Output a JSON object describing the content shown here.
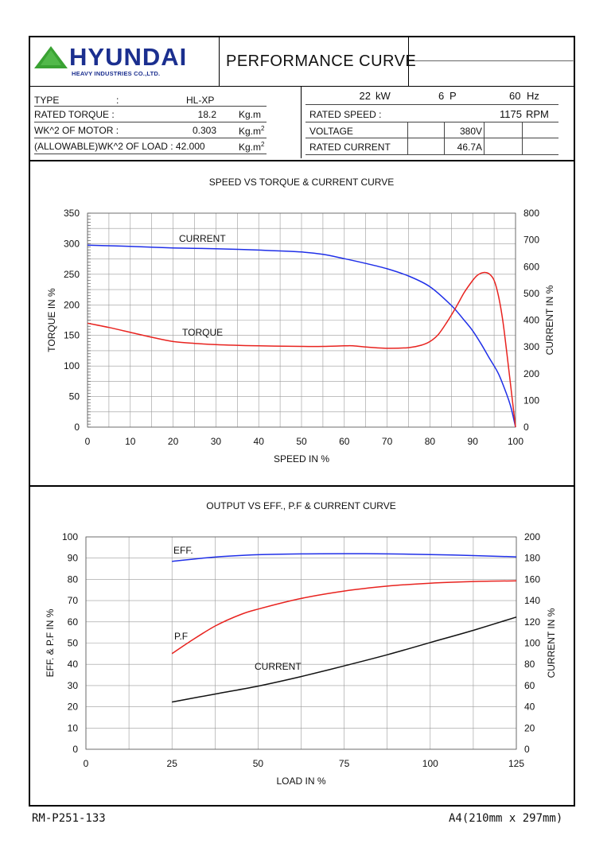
{
  "header": {
    "logo_main": "HYUNDAI",
    "logo_sub": "HEAVY INDUSTRIES CO.,LTD.",
    "title": "PERFORMANCE CURVE"
  },
  "specs_left": {
    "type_label": "TYPE",
    "type_colon": ":",
    "type_value": "HL-XP",
    "rated_torque_label": "RATED TORQUE :",
    "rated_torque_value": "18.2",
    "rated_torque_unit": "Kg.m",
    "wk_motor_label": "WK^2 OF MOTOR :",
    "wk_motor_value": "0.303",
    "wk_motor_unit": "Kg.m",
    "wk_load_label": "(ALLOWABLE)WK^2 OF LOAD : 42.000",
    "wk_load_unit": "Kg.m",
    "unit_sup": "2"
  },
  "specs_right": {
    "power_value": "22",
    "power_unit": "kW",
    "poles_value": "6",
    "poles_unit": "P",
    "freq_value": "60",
    "freq_unit": "Hz",
    "rated_speed_label": "RATED SPEED :",
    "rated_speed_value": "1175",
    "rated_speed_unit": "RPM",
    "voltage_label": "VOLTAGE",
    "voltage_value": "380V",
    "current_label": "RATED CURRENT",
    "current_value": "46.7A"
  },
  "footer": {
    "doc_no": "RM-P251-133",
    "paper": "A4(210mm x 297mm)"
  },
  "colors": {
    "current": "#1f2fe8",
    "torque": "#e8231f",
    "eff": "#1f2fe8",
    "pf": "#e8231f",
    "current2": "#111111",
    "grid": "#9a9a9a"
  },
  "chart_data": [
    {
      "type": "line",
      "title": "SPEED VS TORQUE & CURRENT CURVE",
      "xlabel": "SPEED IN %",
      "ylabel": "TORQUE IN %",
      "y2label": "CURRENT IN %",
      "xlim": [
        0,
        100
      ],
      "ylim": [
        0,
        350
      ],
      "y2lim": [
        0,
        800
      ],
      "xticks": [
        0,
        10,
        20,
        30,
        40,
        50,
        60,
        70,
        80,
        90,
        100
      ],
      "yticks": [
        0,
        50,
        100,
        150,
        200,
        250,
        300,
        350
      ],
      "y2ticks": [
        0,
        100,
        200,
        300,
        400,
        500,
        600,
        700,
        800
      ],
      "grid": true,
      "series": [
        {
          "name": "CURRENT",
          "axis": "right",
          "x": [
            0,
            10,
            20,
            30,
            40,
            50,
            55,
            60,
            65,
            70,
            75,
            80,
            85,
            88,
            90,
            92,
            94,
            96,
            98,
            99,
            100
          ],
          "y": [
            680,
            676,
            670,
            667,
            662,
            655,
            646,
            630,
            612,
            592,
            565,
            525,
            455,
            400,
            360,
            310,
            255,
            200,
            120,
            70,
            0
          ]
        },
        {
          "name": "TORQUE",
          "axis": "left",
          "x": [
            0,
            5,
            10,
            15,
            20,
            25,
            30,
            40,
            50,
            55,
            60,
            62,
            65,
            70,
            75,
            78,
            80,
            82,
            84,
            86,
            88,
            90,
            91,
            92,
            93,
            94,
            95,
            96,
            97,
            98,
            99,
            100
          ],
          "y": [
            170,
            163,
            155,
            147,
            140,
            137,
            135,
            133,
            132,
            132,
            133,
            133,
            131,
            129,
            130,
            134,
            140,
            152,
            172,
            195,
            220,
            240,
            248,
            252,
            253,
            250,
            240,
            215,
            175,
            120,
            60,
            0
          ]
        }
      ]
    },
    {
      "type": "line",
      "title": "OUTPUT VS EFF., P.F & CURRENT CURVE",
      "xlabel": "LOAD IN %",
      "ylabel": "EFF. & P.F IN %",
      "y2label": "CURRENT IN %",
      "xlim": [
        0,
        125
      ],
      "ylim": [
        0,
        100
      ],
      "y2lim": [
        0,
        200
      ],
      "xticks": [
        0,
        25,
        50,
        75,
        100,
        125
      ],
      "yticks": [
        0,
        10,
        20,
        30,
        40,
        50,
        60,
        70,
        80,
        90,
        100
      ],
      "y2ticks": [
        0,
        20,
        40,
        60,
        80,
        100,
        120,
        140,
        160,
        180,
        200
      ],
      "grid": true,
      "series": [
        {
          "name": "EFF.",
          "axis": "left",
          "x": [
            25,
            37.5,
            50,
            62.5,
            75,
            87.5,
            100,
            112.5,
            125
          ],
          "y": [
            88.5,
            90.5,
            91.6,
            92.0,
            92.1,
            92.0,
            91.7,
            91.2,
            90.6
          ]
        },
        {
          "name": "P.F",
          "axis": "left",
          "x": [
            25,
            30,
            37.5,
            45,
            50,
            62.5,
            75,
            87.5,
            100,
            112.5,
            125
          ],
          "y": [
            45.0,
            50.5,
            58.0,
            63.5,
            66.0,
            71.0,
            74.5,
            76.8,
            78.2,
            79.0,
            79.3
          ]
        },
        {
          "name": "CURRENT",
          "axis": "right",
          "x": [
            25,
            37.5,
            50,
            62.5,
            75,
            87.5,
            100,
            112.5,
            125
          ],
          "y": [
            44.5,
            52.0,
            59.5,
            68.5,
            78.5,
            89.0,
            100.5,
            112.0,
            124.5
          ]
        }
      ]
    }
  ]
}
